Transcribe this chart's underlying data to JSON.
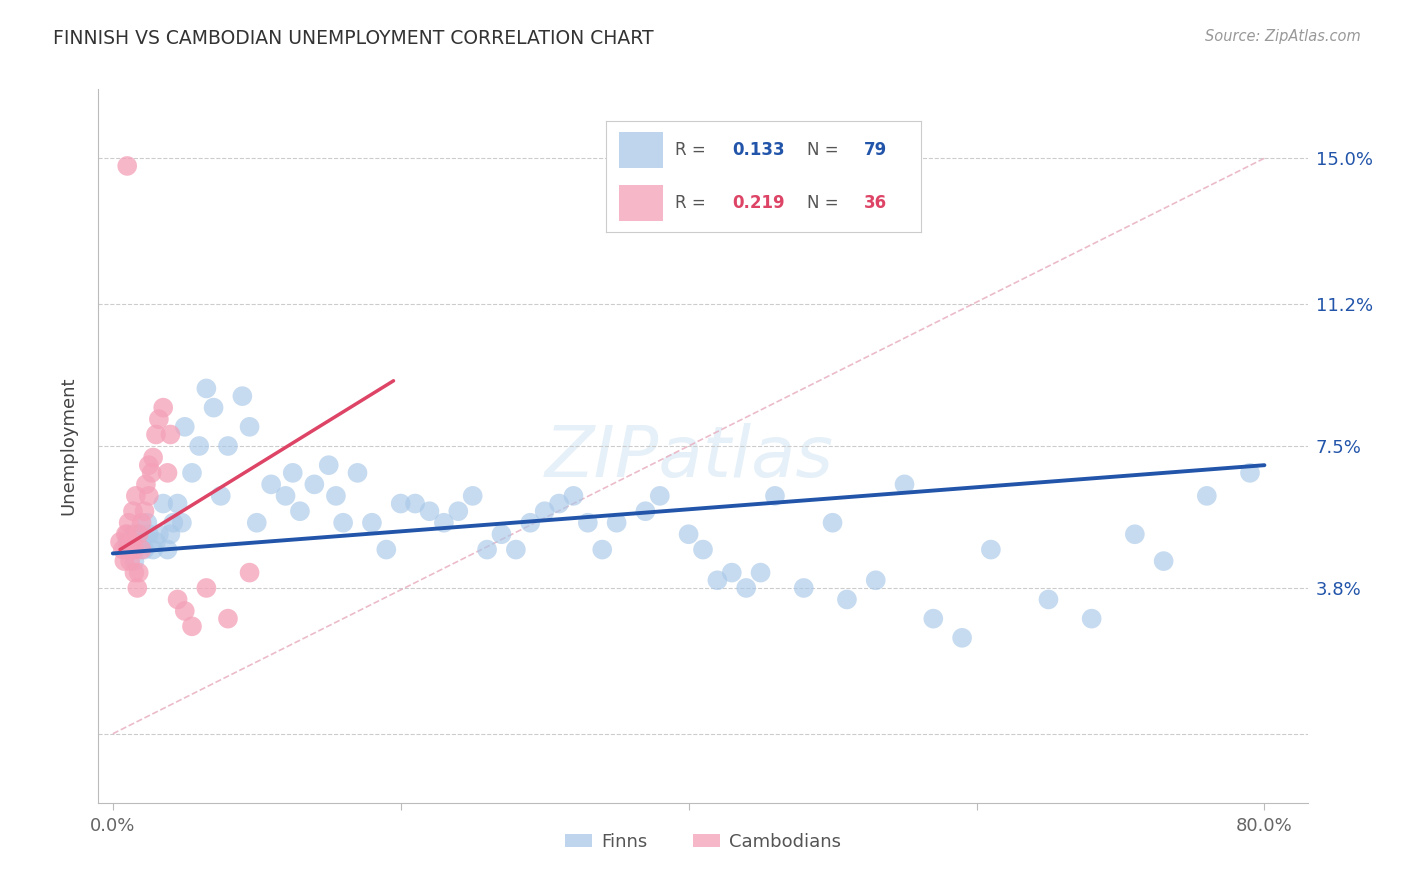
{
  "title": "FINNISH VS CAMBODIAN UNEMPLOYMENT CORRELATION CHART",
  "source": "Source: ZipAtlas.com",
  "ylabel": "Unemployment",
  "blue_color": "#a8c8e8",
  "pink_color": "#f4a0b8",
  "line_blue": "#2255aa",
  "line_pink": "#dd4466",
  "dashed_color": "#e8b0c0",
  "ytick_vals": [
    0.0,
    0.038,
    0.075,
    0.112,
    0.15
  ],
  "ytick_labels": [
    "",
    "3.8%",
    "7.5%",
    "11.2%",
    "15.0%"
  ],
  "xtick_vals": [
    0.0,
    0.2,
    0.4,
    0.6,
    0.8
  ],
  "xtick_labels": [
    "0.0%",
    "",
    "",
    "",
    "80.0%"
  ],
  "blue_line_x": [
    0.0,
    0.8
  ],
  "blue_line_y": [
    0.047,
    0.07
  ],
  "pink_line_x": [
    0.005,
    0.195
  ],
  "pink_line_y": [
    0.048,
    0.092
  ],
  "dash_line_x": [
    0.0,
    0.8
  ],
  "dash_line_y": [
    0.0,
    0.15
  ],
  "finns_x": [
    0.01,
    0.012,
    0.014,
    0.015,
    0.016,
    0.018,
    0.02,
    0.022,
    0.024,
    0.025,
    0.028,
    0.03,
    0.032,
    0.035,
    0.038,
    0.04,
    0.042,
    0.045,
    0.048,
    0.05,
    0.055,
    0.06,
    0.065,
    0.07,
    0.075,
    0.08,
    0.09,
    0.095,
    0.1,
    0.11,
    0.12,
    0.125,
    0.13,
    0.14,
    0.15,
    0.155,
    0.16,
    0.17,
    0.18,
    0.19,
    0.2,
    0.21,
    0.22,
    0.23,
    0.24,
    0.25,
    0.26,
    0.27,
    0.28,
    0.29,
    0.3,
    0.31,
    0.32,
    0.33,
    0.34,
    0.35,
    0.37,
    0.38,
    0.4,
    0.41,
    0.42,
    0.43,
    0.44,
    0.45,
    0.46,
    0.48,
    0.5,
    0.51,
    0.53,
    0.55,
    0.57,
    0.59,
    0.61,
    0.65,
    0.68,
    0.71,
    0.73,
    0.76,
    0.79
  ],
  "finns_y": [
    0.05,
    0.048,
    0.052,
    0.045,
    0.048,
    0.052,
    0.05,
    0.048,
    0.055,
    0.052,
    0.048,
    0.05,
    0.052,
    0.06,
    0.048,
    0.052,
    0.055,
    0.06,
    0.055,
    0.08,
    0.068,
    0.075,
    0.09,
    0.085,
    0.062,
    0.075,
    0.088,
    0.08,
    0.055,
    0.065,
    0.062,
    0.068,
    0.058,
    0.065,
    0.07,
    0.062,
    0.055,
    0.068,
    0.055,
    0.048,
    0.06,
    0.06,
    0.058,
    0.055,
    0.058,
    0.062,
    0.048,
    0.052,
    0.048,
    0.055,
    0.058,
    0.06,
    0.062,
    0.055,
    0.048,
    0.055,
    0.058,
    0.062,
    0.052,
    0.048,
    0.04,
    0.042,
    0.038,
    0.042,
    0.062,
    0.038,
    0.055,
    0.035,
    0.04,
    0.065,
    0.03,
    0.025,
    0.048,
    0.035,
    0.03,
    0.052,
    0.045,
    0.062,
    0.068
  ],
  "cambodians_x": [
    0.005,
    0.007,
    0.008,
    0.009,
    0.01,
    0.01,
    0.011,
    0.012,
    0.013,
    0.014,
    0.015,
    0.015,
    0.016,
    0.017,
    0.018,
    0.018,
    0.02,
    0.02,
    0.022,
    0.023,
    0.025,
    0.025,
    0.027,
    0.028,
    0.03,
    0.032,
    0.035,
    0.038,
    0.04,
    0.045,
    0.05,
    0.055,
    0.065,
    0.08,
    0.095,
    0.01
  ],
  "cambodians_y": [
    0.05,
    0.048,
    0.045,
    0.052,
    0.048,
    0.052,
    0.055,
    0.045,
    0.05,
    0.058,
    0.042,
    0.048,
    0.062,
    0.038,
    0.042,
    0.052,
    0.048,
    0.055,
    0.058,
    0.065,
    0.07,
    0.062,
    0.068,
    0.072,
    0.078,
    0.082,
    0.085,
    0.068,
    0.078,
    0.035,
    0.032,
    0.028,
    0.038,
    0.03,
    0.042,
    0.148
  ]
}
